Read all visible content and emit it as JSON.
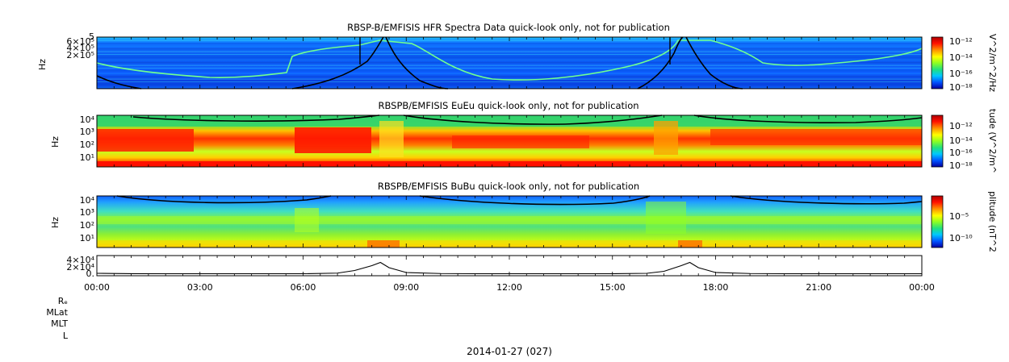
{
  "colors": {
    "colorbar_stops": [
      "#0000a0",
      "#0050ff",
      "#00c8ff",
      "#20e080",
      "#90ff20",
      "#ffff00",
      "#ff9000",
      "#ff1000",
      "#b00000"
    ],
    "curve": "#000000",
    "line": "#000000"
  },
  "panels": [
    {
      "title": "RBSP-B/EMFISIS  HFR Spectra Data quick-look only, not for publication",
      "ylabel": "Hz",
      "y_ticks": [
        "6×10⁵",
        "4×10⁵",
        "2×10⁵"
      ],
      "y_top_label": "5",
      "colorbar_label": "V^2/m^2/Hz",
      "colorbar_ticks": [
        "10⁻¹²",
        "10⁻¹⁴",
        "10⁻¹⁶",
        "10⁻¹⁸"
      ],
      "scale": "linear"
    },
    {
      "title": "RBSPB/EMFISIS  EuEu quick-look only, not for publication",
      "ylabel": "Hz",
      "y_ticks": [
        "10⁴",
        "10³",
        "10²",
        "10¹"
      ],
      "colorbar_label": "tude (V^2/m^",
      "colorbar_ticks": [
        "10⁻¹²",
        "10⁻¹⁴",
        "10⁻¹⁶",
        "10⁻¹⁸"
      ],
      "scale": "log"
    },
    {
      "title": "RBSPB/EMFISIS  BuBu quick-look only, not for publication",
      "ylabel": "Hz",
      "y_ticks": [
        "10⁴",
        "10³",
        "10²",
        "10¹"
      ],
      "colorbar_label": "plitude (nT^2",
      "colorbar_ticks": [
        "10⁻⁵",
        "10⁻¹⁰"
      ],
      "scale": "log"
    }
  ],
  "line_panel": {
    "y_ticks": [
      "4×10⁴",
      "2×10⁴",
      "0."
    ]
  },
  "x_axis": {
    "tick_labels": [
      "00:00",
      "03:00",
      "06:00",
      "09:00",
      "12:00",
      "15:00",
      "18:00",
      "21:00",
      "00:00"
    ]
  },
  "ephemeris_labels": [
    "Rₑ",
    "MLat",
    "MLT",
    "L"
  ],
  "date_label": "2014-01-27 (027)",
  "chart_data": {
    "type": "heatmap",
    "x_range_hours": [
      0,
      24
    ],
    "panels": [
      {
        "title": "RBSP-B/EMFISIS  HFR Spectra Data quick-look only, not for publication",
        "ylabel": "Hz",
        "colorbar_label": "V^2/m^2/Hz"
      },
      {
        "title": "RBSPB/EMFISIS  EuEu quick-look only, not for publication",
        "ylabel": "Hz",
        "colorbar_label": "tude (V^2/m^"
      },
      {
        "title": "RBSPB/EMFISIS  BuBu quick-look only, not for publication",
        "ylabel": "Hz",
        "colorbar_label": "plitude (nT^2"
      }
    ],
    "line_series": {
      "x_hours": [
        0,
        1,
        2,
        3,
        4,
        5,
        6,
        7,
        7.5,
        8,
        8.25,
        8.5,
        9,
        10,
        11,
        12,
        13,
        14,
        15,
        16,
        16.5,
        17,
        17.25,
        17.5,
        18,
        19,
        20,
        21,
        22,
        23,
        24
      ],
      "values": [
        1000,
        200,
        0,
        0,
        0,
        0,
        0,
        1500,
        8000,
        20000,
        28000,
        15000,
        3000,
        500,
        0,
        0,
        0,
        0,
        0,
        1000,
        6000,
        20000,
        28000,
        15000,
        3000,
        500,
        0,
        0,
        0,
        0,
        0
      ],
      "y_range": [
        -5000,
        45000
      ]
    }
  }
}
